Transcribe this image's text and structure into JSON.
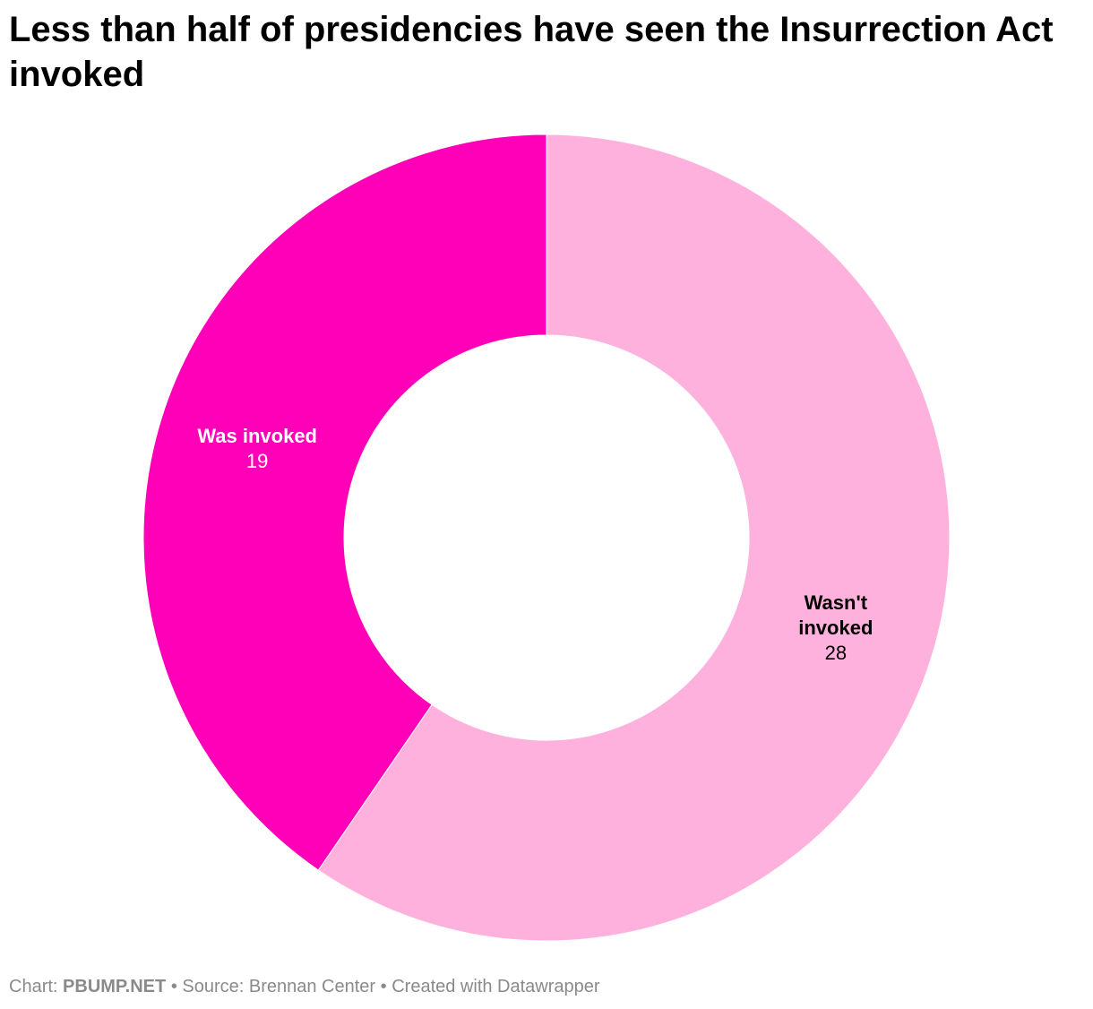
{
  "chart_data": {
    "type": "pie",
    "title": "Less than half of presidencies have seen the Insurrection Act invoked",
    "donut": true,
    "slices": [
      {
        "label": "Was invoked",
        "value": 19,
        "color": "#ff00b8",
        "label_color": "#ffffff"
      },
      {
        "label": "Wasn't invoked",
        "value": 28,
        "color": "#ffb1dd",
        "label_color": "#000000"
      }
    ]
  },
  "footer": {
    "chart_prefix": "Chart:",
    "chart_by": "PBUMP.NET",
    "separator": "•",
    "source": "Source: Brennan Center",
    "created": "Created with Datawrapper"
  }
}
